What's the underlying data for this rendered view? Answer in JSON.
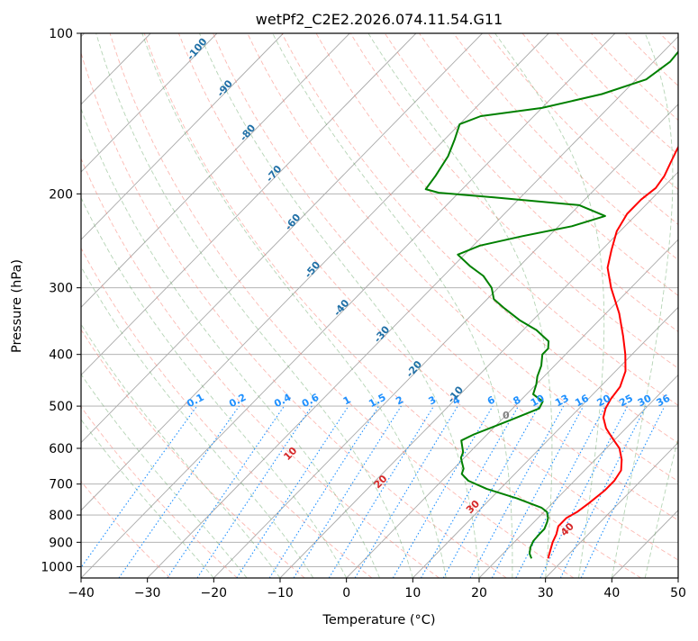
{
  "chart_data": {
    "type": "line",
    "subtype": "skew-t log-p",
    "title": "wetPf2_C2E2.2026.074.11.54.G11",
    "xlabel": "Temperature (°C)",
    "ylabel": "Pressure (hPa)",
    "xlim": [
      -40,
      50
    ],
    "ylim": [
      1050,
      100
    ],
    "yscale": "log",
    "x_ticks": [
      -40,
      -30,
      -20,
      -10,
      0,
      10,
      20,
      30,
      40,
      50
    ],
    "x_tick_labels": [
      "−40",
      "−30",
      "−20",
      "−10",
      "0",
      "10",
      "20",
      "30",
      "40",
      "50"
    ],
    "y_ticks": [
      1000,
      900,
      800,
      700,
      600,
      500,
      400,
      300,
      200,
      100
    ],
    "y_tick_labels": [
      "1000",
      "900",
      "800",
      "700",
      "600",
      "500",
      "400",
      "300",
      "200",
      "100"
    ],
    "grid": true,
    "colors": {
      "temperature": "#ff0000",
      "dewpoint": "#008000",
      "isotherm": "#a9a9a9",
      "dry_adiabat": "#fa8072",
      "moist_adiabat": "#5aa05a",
      "mixing_ratio": "#1e90ff",
      "saturation_isotherm": "#1f6fa6",
      "dry_adiabat_label": "#d62728",
      "zero_isotherm_label": "#808080"
    },
    "series": [
      {
        "role": "temperature",
        "points": [
          [
            27.5,
            965
          ],
          [
            26.6,
            930
          ],
          [
            25.8,
            900
          ],
          [
            25.2,
            870
          ],
          [
            24.3,
            840
          ],
          [
            24.3,
            810
          ],
          [
            25.0,
            790
          ],
          [
            25.5,
            760
          ],
          [
            26.0,
            720
          ],
          [
            26.0,
            690
          ],
          [
            25.5,
            660
          ],
          [
            24.0,
            630
          ],
          [
            22.0,
            600
          ],
          [
            19.5,
            575
          ],
          [
            17.0,
            550
          ],
          [
            15.0,
            525
          ],
          [
            14.0,
            505
          ],
          [
            13.4,
            485
          ],
          [
            13.0,
            460
          ],
          [
            11.5,
            430
          ],
          [
            9.0,
            400
          ],
          [
            6.0,
            370
          ],
          [
            2.0,
            335
          ],
          [
            -3.0,
            300
          ],
          [
            -6.5,
            275
          ],
          [
            -8.5,
            255
          ],
          [
            -10.5,
            235
          ],
          [
            -11.5,
            218
          ],
          [
            -11.5,
            205
          ],
          [
            -11.0,
            195
          ],
          [
            -11.5,
            185
          ],
          [
            -12.5,
            175
          ],
          [
            -13.5,
            165
          ],
          [
            -14.5,
            155
          ],
          [
            -15.0,
            148
          ],
          [
            -15.5,
            140
          ],
          [
            -17.0,
            130
          ],
          [
            -19.0,
            118
          ],
          [
            -20.5,
            108
          ],
          [
            -21.0,
            100
          ]
        ]
      },
      {
        "role": "dewpoint",
        "points": [
          [
            25.0,
            965
          ],
          [
            24.0,
            945
          ],
          [
            23.2,
            920
          ],
          [
            22.7,
            895
          ],
          [
            22.6,
            870
          ],
          [
            22.6,
            850
          ],
          [
            22.0,
            825
          ],
          [
            21.5,
            810
          ],
          [
            20.5,
            790
          ],
          [
            19.0,
            775
          ],
          [
            14.0,
            745
          ],
          [
            8.0,
            715
          ],
          [
            4.0,
            690
          ],
          [
            2.0,
            670
          ],
          [
            1.5,
            655
          ],
          [
            0.5,
            640
          ],
          [
            -0.5,
            625
          ],
          [
            -1.0,
            610
          ],
          [
            -2.0,
            595
          ],
          [
            -3.0,
            580
          ],
          [
            -2.0,
            565
          ],
          [
            -0.5,
            550
          ],
          [
            1.5,
            530
          ],
          [
            4.0,
            505
          ],
          [
            3.5,
            490
          ],
          [
            1.0,
            475
          ],
          [
            0.0,
            455
          ],
          [
            -1.0,
            440
          ],
          [
            -2.0,
            420
          ],
          [
            -3.5,
            400
          ],
          [
            -3.5,
            390
          ],
          [
            -4.5,
            378
          ],
          [
            -8.0,
            360
          ],
          [
            -12.0,
            345
          ],
          [
            -16.0,
            328
          ],
          [
            -19.0,
            315
          ],
          [
            -21.0,
            300
          ],
          [
            -24.0,
            285
          ],
          [
            -27.5,
            273
          ],
          [
            -31.0,
            260
          ],
          [
            -29.0,
            250
          ],
          [
            -24.0,
            240
          ],
          [
            -18.0,
            230
          ],
          [
            -14.5,
            220
          ],
          [
            -20.0,
            210
          ],
          [
            -34.0,
            203
          ],
          [
            -43.0,
            199
          ],
          [
            -45.5,
            196
          ],
          [
            -46.0,
            185
          ],
          [
            -47.0,
            170
          ],
          [
            -48.5,
            158
          ],
          [
            -50.0,
            148
          ],
          [
            -48.0,
            143
          ],
          [
            -40.0,
            138
          ],
          [
            -33.0,
            130
          ],
          [
            -28.5,
            122
          ],
          [
            -27.5,
            113
          ],
          [
            -28.0,
            103
          ],
          [
            -28.5,
            100
          ]
        ]
      }
    ],
    "mixing_ratio_labels": [
      "0.1",
      "0.2",
      "0.4",
      "0.6",
      "1",
      "1.5",
      "2",
      "3",
      "4",
      "6",
      "8",
      "10",
      "13",
      "16",
      "20",
      "25",
      "30",
      "36"
    ],
    "saturation_isotherm_labels": [
      "-100",
      "-90",
      "-80",
      "-70",
      "-60",
      "-50",
      "-40",
      "-30",
      "-20",
      "-10"
    ],
    "zero_isotherm_label": "0",
    "dry_adiabat_labels": [
      "10",
      "20",
      "30",
      "40"
    ]
  }
}
